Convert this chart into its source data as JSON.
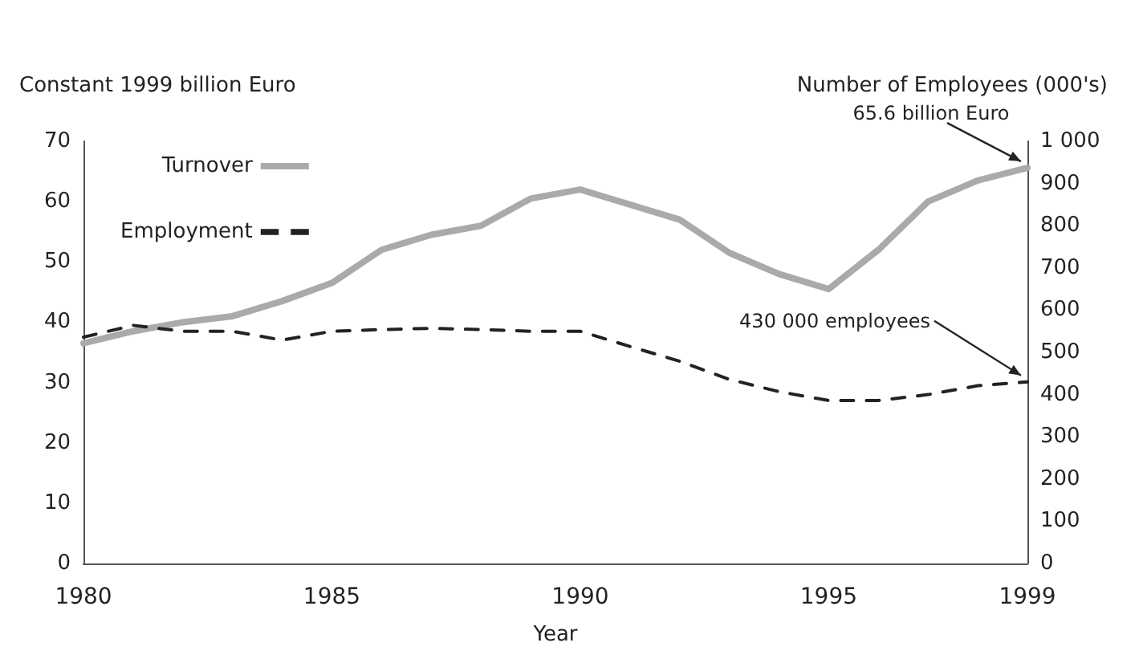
{
  "chart_data": {
    "type": "line",
    "xlabel": "Year",
    "ylabel": "Constant 1999 billion Euro",
    "y2label": "Number of Employees (000's)",
    "x": [
      1980,
      1981,
      1982,
      1983,
      1984,
      1985,
      1986,
      1987,
      1988,
      1989,
      1990,
      1991,
      1992,
      1993,
      1994,
      1995,
      1996,
      1997,
      1998,
      1999
    ],
    "series": [
      {
        "name": "Turnover",
        "color": "#aaaaaa",
        "line_style": "solid",
        "values": [
          36.5,
          38.5,
          40,
          41,
          43.5,
          46.5,
          52,
          54.5,
          56,
          60.5,
          62,
          59.5,
          57,
          51.5,
          48,
          45.5,
          52,
          60,
          63.5,
          65.6
        ]
      },
      {
        "name": "Employment",
        "color": "#222222",
        "line_style": "dashed",
        "axis": "y2",
        "values": [
          536,
          564,
          550,
          550,
          529,
          550,
          554,
          557,
          554,
          550,
          550,
          514,
          479,
          436,
          407,
          386,
          386,
          400,
          421,
          430
        ]
      }
    ],
    "xlim": [
      1980,
      1999
    ],
    "xticks": [
      1980,
      1985,
      1990,
      1995,
      1999
    ],
    "ylim": [
      0,
      70
    ],
    "yticks": [
      0,
      10,
      20,
      30,
      40,
      50,
      60,
      70
    ],
    "y2lim": [
      0,
      1000
    ],
    "y2ticks": [
      0,
      100,
      200,
      300,
      400,
      500,
      600,
      700,
      800,
      900,
      {
        "value": 1000,
        "label": "1 000"
      }
    ],
    "annotations": [
      {
        "text": "65.6 billion Euro",
        "x": 1999,
        "y": 65.6
      },
      {
        "text": "430 000 employees",
        "x": 1999,
        "y": 30.1
      }
    ],
    "grid": false,
    "legend": "top left",
    "marker": "none"
  }
}
